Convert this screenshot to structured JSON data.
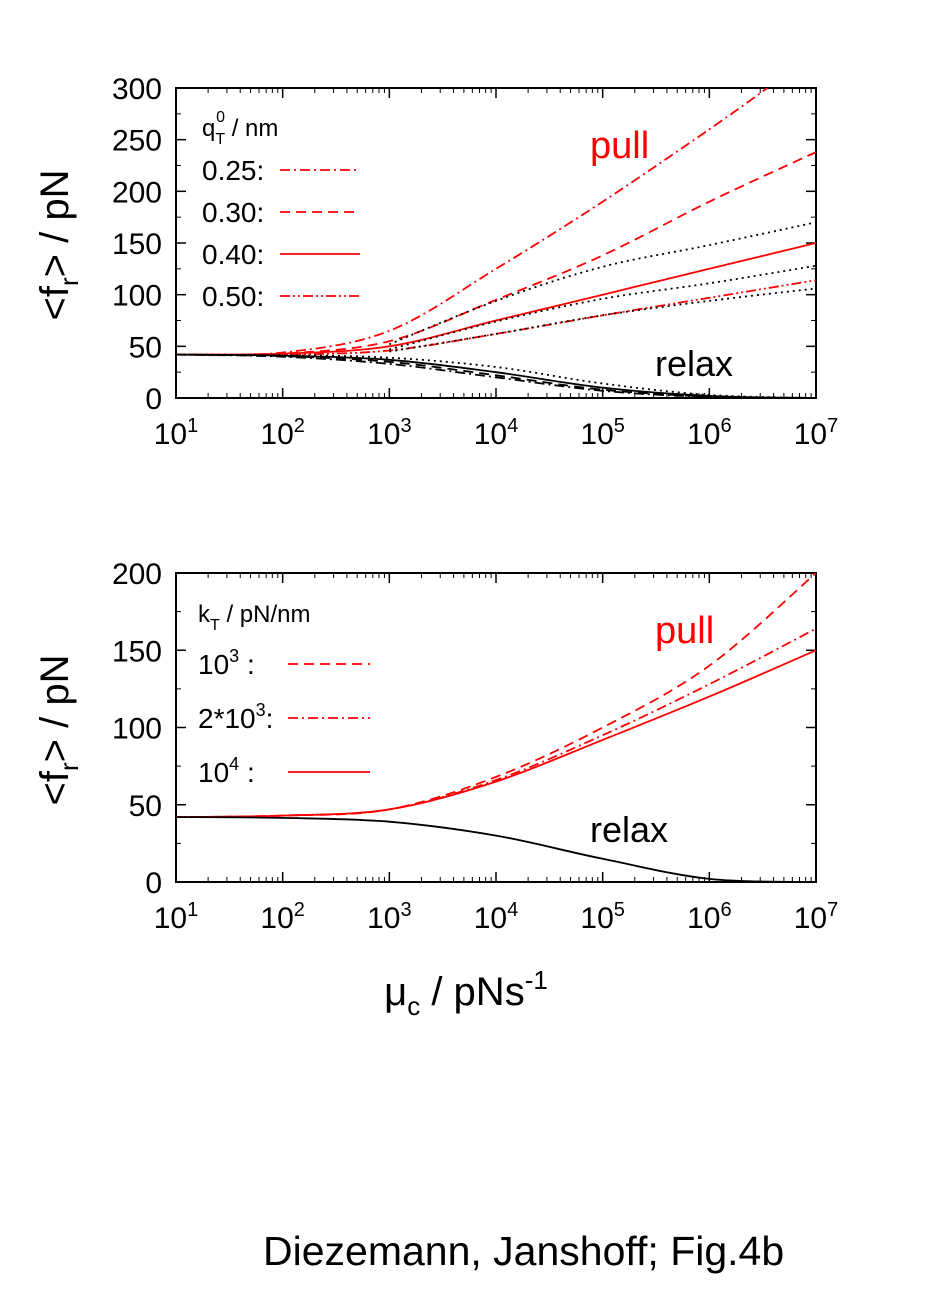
{
  "caption": "Diezemann, Janshoff; Fig.4b",
  "chart_data": [
    {
      "type": "line",
      "x_scale": "log",
      "xlim": [
        10,
        10000000
      ],
      "ylim": [
        0,
        300
      ],
      "ylabel": "<f_r> / pN",
      "xlabel": "",
      "x_ticks": [
        {
          "base": "10",
          "exp": "1"
        },
        {
          "base": "10",
          "exp": "2"
        },
        {
          "base": "10",
          "exp": "3"
        },
        {
          "base": "10",
          "exp": "4"
        },
        {
          "base": "10",
          "exp": "5"
        },
        {
          "base": "10",
          "exp": "6"
        },
        {
          "base": "10",
          "exp": "7"
        }
      ],
      "y_ticks": [
        "0",
        "50",
        "100",
        "150",
        "200",
        "250",
        "300"
      ],
      "legend_title": "q_T^0 / nm",
      "legend_location": "top-left",
      "annotations": [
        {
          "text": "pull",
          "color": "#ff0000"
        },
        {
          "text": "relax",
          "color": "#000000"
        }
      ],
      "series": [
        {
          "name": "0.25:",
          "color": "#ff0000",
          "style": "dash-dot",
          "group": "pull",
          "x": [
            10,
            100,
            1000,
            10000,
            100000,
            1000000,
            3500000
          ],
          "y": [
            42,
            44,
            65,
            125,
            190,
            260,
            300
          ]
        },
        {
          "name": "0.30:",
          "color": "#ff0000",
          "style": "dashed",
          "group": "pull",
          "x": [
            10,
            100,
            1000,
            10000,
            100000,
            1000000,
            10000000
          ],
          "y": [
            42,
            43,
            55,
            95,
            138,
            190,
            238
          ]
        },
        {
          "name": "0.40:",
          "color": "#ff0000",
          "style": "solid",
          "group": "pull",
          "x": [
            10,
            100,
            1000,
            10000,
            100000,
            1000000,
            10000000
          ],
          "y": [
            42,
            43,
            50,
            75,
            100,
            125,
            150
          ]
        },
        {
          "name": "0.50:",
          "color": "#ff0000",
          "style": "dash-dot-dot",
          "group": "pull",
          "x": [
            10,
            100,
            1000,
            10000,
            100000,
            1000000,
            10000000
          ],
          "y": [
            42,
            42,
            46,
            62,
            80,
            97,
            114
          ]
        },
        {
          "color": "#000000",
          "style": "dotted",
          "group": "pull",
          "x": [
            1000,
            10000,
            100000,
            1000000,
            10000000
          ],
          "y": [
            52,
            94,
            127,
            148,
            170
          ]
        },
        {
          "color": "#000000",
          "style": "dotted",
          "group": "pull",
          "x": [
            1000,
            10000,
            100000,
            1000000,
            10000000
          ],
          "y": [
            47,
            74,
            96,
            111,
            128
          ]
        },
        {
          "color": "#000000",
          "style": "dotted",
          "group": "pull",
          "x": [
            1000,
            10000,
            100000,
            1000000,
            10000000
          ],
          "y": [
            45,
            62,
            80,
            94,
            106
          ]
        },
        {
          "color": "#000000",
          "style": "dash-dot",
          "group": "relax",
          "x": [
            10,
            100,
            1000,
            10000,
            100000,
            1000000,
            10000000
          ],
          "y": [
            42,
            40,
            33,
            20,
            7,
            1,
            0
          ]
        },
        {
          "color": "#000000",
          "style": "dashed",
          "group": "relax",
          "x": [
            10,
            100,
            1000,
            10000,
            100000,
            1000000,
            10000000
          ],
          "y": [
            42,
            40.5,
            35,
            22,
            8,
            1.5,
            0
          ]
        },
        {
          "color": "#000000",
          "style": "solid",
          "group": "relax",
          "x": [
            10,
            100,
            1000,
            10000,
            100000,
            1000000,
            10000000
          ],
          "y": [
            42,
            41,
            37,
            25,
            10,
            2,
            0
          ]
        },
        {
          "color": "#000000",
          "style": "dotted",
          "group": "relax",
          "x": [
            10,
            100,
            1000,
            10000,
            100000,
            1000000,
            10000000
          ],
          "y": [
            42,
            41.5,
            39,
            30,
            14,
            3,
            0
          ]
        }
      ]
    },
    {
      "type": "line",
      "x_scale": "log",
      "xlim": [
        10,
        10000000
      ],
      "ylim": [
        0,
        200
      ],
      "ylabel": "<f_r> / pN",
      "xlabel": "μ_c / pNs^-1",
      "x_ticks": [
        {
          "base": "10",
          "exp": "1"
        },
        {
          "base": "10",
          "exp": "2"
        },
        {
          "base": "10",
          "exp": "3"
        },
        {
          "base": "10",
          "exp": "4"
        },
        {
          "base": "10",
          "exp": "5"
        },
        {
          "base": "10",
          "exp": "6"
        },
        {
          "base": "10",
          "exp": "7"
        }
      ],
      "y_ticks": [
        "0",
        "50",
        "100",
        "150",
        "200"
      ],
      "legend_title": "k_T / pN/nm",
      "legend_location": "top-left",
      "annotations": [
        {
          "text": "pull",
          "color": "#ff0000"
        },
        {
          "text": "relax",
          "color": "#000000"
        }
      ],
      "series": [
        {
          "name": "10^3 :",
          "color": "#ff0000",
          "style": "dashed",
          "group": "pull",
          "x": [
            10,
            100,
            1000,
            10000,
            100000,
            1000000,
            10000000
          ],
          "y": [
            42,
            43,
            47,
            68,
            100,
            140,
            200
          ]
        },
        {
          "name": "2*10^3:",
          "color": "#ff0000",
          "style": "dash-dot",
          "group": "pull",
          "x": [
            10,
            100,
            1000,
            10000,
            100000,
            1000000,
            10000000
          ],
          "y": [
            42,
            43,
            47,
            66,
            95,
            128,
            164
          ]
        },
        {
          "name": "10^4 :",
          "color": "#ff0000",
          "style": "solid",
          "group": "pull",
          "x": [
            10,
            100,
            1000,
            10000,
            100000,
            1000000,
            10000000
          ],
          "y": [
            42,
            43,
            47,
            65,
            92,
            120,
            150
          ]
        },
        {
          "color": "#000000",
          "style": "solid",
          "group": "relax",
          "x": [
            10,
            100,
            1000,
            10000,
            100000,
            1000000,
            10000000
          ],
          "y": [
            42,
            41.5,
            39,
            30,
            15,
            2,
            0
          ]
        }
      ]
    }
  ]
}
